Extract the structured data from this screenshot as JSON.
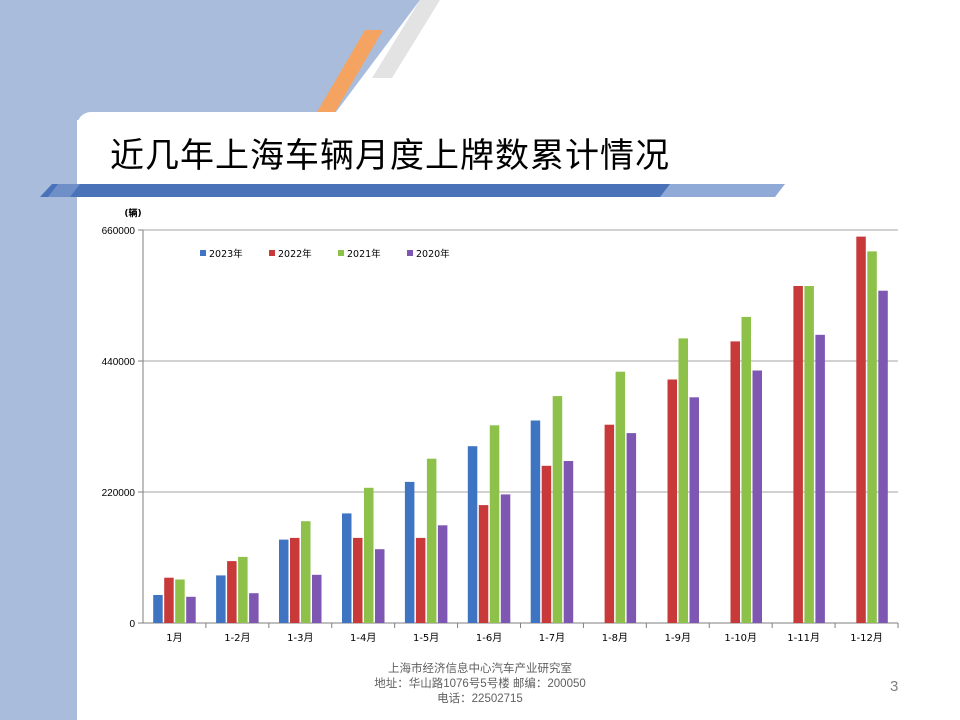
{
  "slide": {
    "title": "近几年上海车辆月度上牌数累计情况",
    "footer": {
      "org": "上海市经济信息中心汽车产业研究室",
      "address": "地址：华山路1076号5号楼    邮编：200050",
      "phone": "电话：22502715"
    },
    "page_number": "3"
  },
  "colors": {
    "side_band": "#a9bcdc",
    "accent_orange": "#f4a460",
    "accent_grey": "#e3e3e3",
    "title_rule_blue": "#4a72b8",
    "title_rule_light": "#8faad6"
  },
  "chart_data": {
    "type": "bar",
    "title": "",
    "xlabel": "",
    "ylabel": "(辆)",
    "ylim": [
      0,
      660000
    ],
    "yticks": [
      0,
      220000,
      440000,
      660000
    ],
    "ytick_labels": [
      "0",
      "220000",
      "440000",
      "660000"
    ],
    "grid": true,
    "legend_position": "top-left",
    "categories": [
      "1月",
      "1-2月",
      "1-3月",
      "1-4月",
      "1-5月",
      "1-6月",
      "1-7月",
      "1-8月",
      "1-9月",
      "1-10月",
      "1-11月",
      "1-12月"
    ],
    "series": [
      {
        "name": "2023年",
        "color": "#3f74c2",
        "values": [
          47000,
          80000,
          140000,
          184000,
          237000,
          297000,
          340000,
          null,
          null,
          null,
          null,
          null
        ]
      },
      {
        "name": "2022年",
        "color": "#c83a3a",
        "values": [
          76000,
          104000,
          143000,
          143000,
          143000,
          198000,
          264000,
          333000,
          409000,
          473000,
          566000,
          649000
        ]
      },
      {
        "name": "2021年",
        "color": "#8dc149",
        "values": [
          73000,
          111000,
          171000,
          227000,
          276000,
          332000,
          381000,
          422000,
          478000,
          514000,
          566000,
          624000
        ]
      },
      {
        "name": "2020年",
        "color": "#7e57b2",
        "values": [
          44000,
          50000,
          81000,
          124000,
          164000,
          216000,
          272000,
          319000,
          379000,
          424000,
          484000,
          558000
        ]
      }
    ]
  }
}
